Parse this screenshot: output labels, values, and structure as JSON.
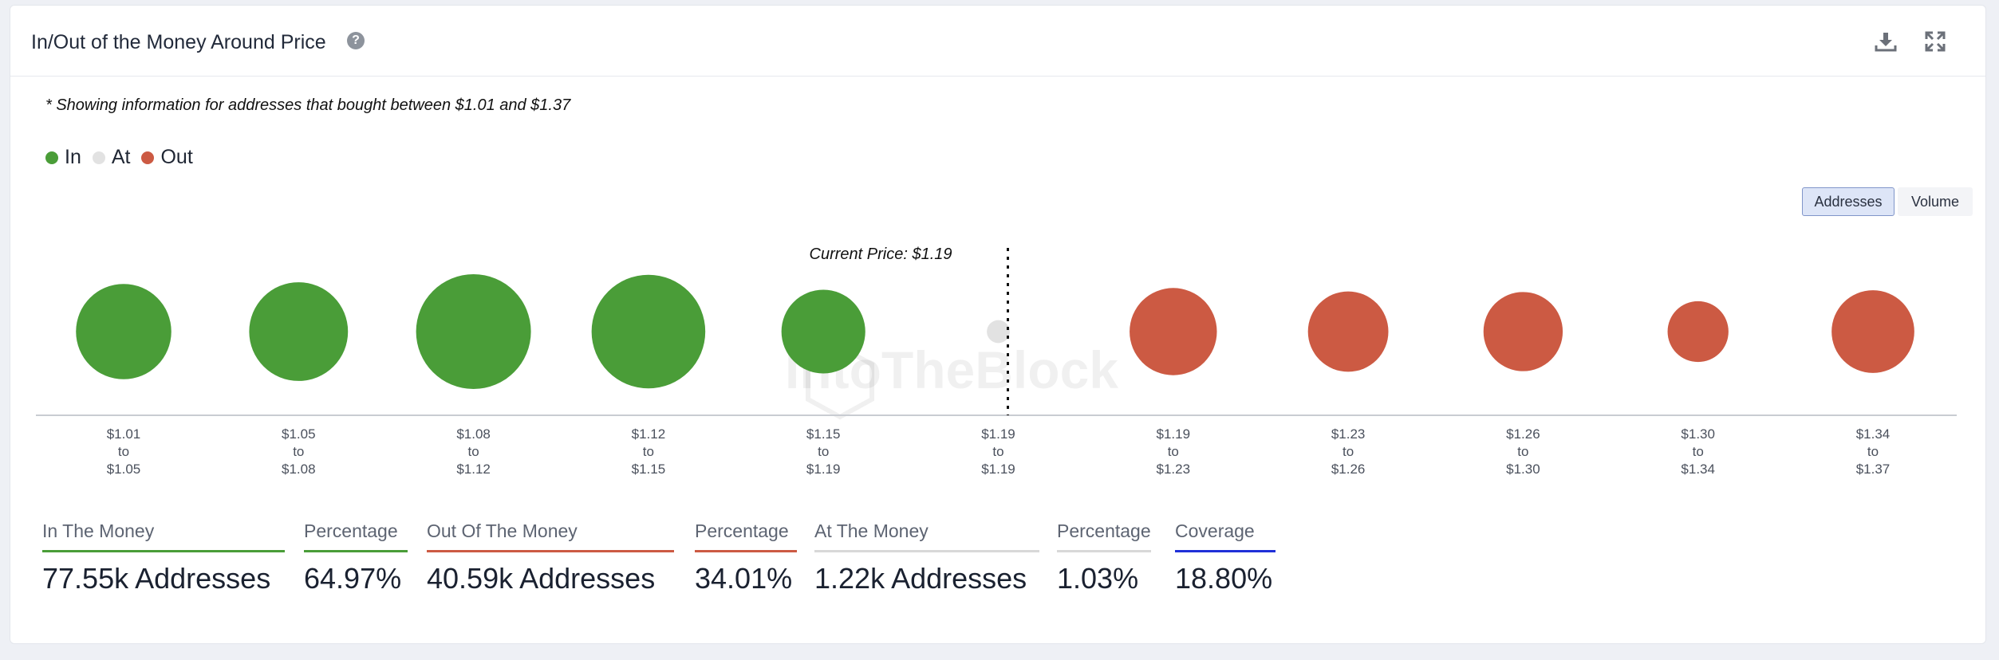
{
  "header": {
    "title": "In/Out of the Money Around Price",
    "help_icon": "?"
  },
  "note": "* Showing information for addresses that bought between $1.01 and $1.37",
  "legend": [
    {
      "label": "In",
      "color": "#4a9d38"
    },
    {
      "label": "At",
      "color": "#e2e2e2"
    },
    {
      "label": "Out",
      "color": "#cc5a43"
    }
  ],
  "toggle": {
    "addresses": "Addresses",
    "volume": "Volume",
    "selected": "Addresses"
  },
  "watermark": "IntoTheBlock",
  "chart_data": {
    "type": "scatter",
    "metric": "Addresses",
    "current_price_label": "Current Price: $1.19",
    "categories": [
      {
        "from": "$1.01",
        "to": "$1.05",
        "status": "In",
        "relative_size": 0.83
      },
      {
        "from": "$1.05",
        "to": "$1.08",
        "status": "In",
        "relative_size": 0.86
      },
      {
        "from": "$1.08",
        "to": "$1.12",
        "status": "In",
        "relative_size": 1.0
      },
      {
        "from": "$1.12",
        "to": "$1.15",
        "status": "In",
        "relative_size": 0.99
      },
      {
        "from": "$1.15",
        "to": "$1.19",
        "status": "In",
        "relative_size": 0.73
      },
      {
        "from": "$1.19",
        "to": "$1.19",
        "status": "At",
        "relative_size": 0.2
      },
      {
        "from": "$1.19",
        "to": "$1.23",
        "status": "Out",
        "relative_size": 0.76
      },
      {
        "from": "$1.23",
        "to": "$1.26",
        "status": "Out",
        "relative_size": 0.7
      },
      {
        "from": "$1.26",
        "to": "$1.30",
        "status": "Out",
        "relative_size": 0.69
      },
      {
        "from": "$1.30",
        "to": "$1.34",
        "status": "Out",
        "relative_size": 0.53
      },
      {
        "from": "$1.34",
        "to": "$1.37",
        "status": "Out",
        "relative_size": 0.72
      }
    ],
    "tick_connector": "to",
    "colors": {
      "In": "#4a9d38",
      "At": "#e2e2e2",
      "Out": "#cc5a43"
    }
  },
  "stats": [
    {
      "label": "In The Money",
      "value": "77.55k Addresses",
      "color": "#4a9d38"
    },
    {
      "label": "Percentage",
      "value": "64.97%",
      "color": "#4a9d38"
    },
    {
      "label": "Out Of The Money",
      "value": "40.59k Addresses",
      "color": "#cc5a43"
    },
    {
      "label": "Percentage",
      "value": "34.01%",
      "color": "#cc5a43"
    },
    {
      "label": "At The Money",
      "value": "1.22k Addresses",
      "color": "#d8d8d8"
    },
    {
      "label": "Percentage",
      "value": "1.03%",
      "color": "#d8d8d8"
    },
    {
      "label": "Coverage",
      "value": "18.80%",
      "color": "#2030d8"
    }
  ]
}
